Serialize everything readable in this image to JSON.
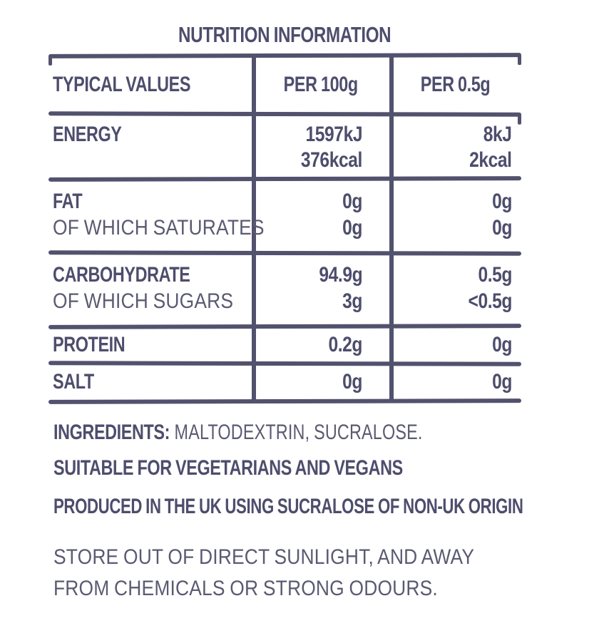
{
  "colors": {
    "ink_bold": "#4d4d6d",
    "ink_regular": "#5a5a72",
    "rule": "#52526e",
    "background": "#ffffff"
  },
  "title": "NUTRITION INFORMATION",
  "table": {
    "columns": [
      "TYPICAL VALUES",
      "PER 100g",
      "PER 0.5g"
    ],
    "rows": [
      {
        "label": "ENERGY",
        "sub_label": "",
        "per_100g": [
          "1597kJ",
          "376kcal"
        ],
        "per_0_5g": [
          "8kJ",
          "2kcal"
        ]
      },
      {
        "label": "FAT",
        "sub_label": "OF WHICH SATURATES",
        "per_100g": [
          "0g",
          "0g"
        ],
        "per_0_5g": [
          "0g",
          "0g"
        ]
      },
      {
        "label": "CARBOHYDRATE",
        "sub_label": "OF WHICH SUGARS",
        "per_100g": [
          "94.9g",
          "3g"
        ],
        "per_0_5g": [
          "0.5g",
          "<0.5g"
        ]
      },
      {
        "label": "PROTEIN",
        "sub_label": "",
        "per_100g": [
          "0.2g"
        ],
        "per_0_5g": [
          "0g"
        ]
      },
      {
        "label": "SALT",
        "sub_label": "",
        "per_100g": [
          "0g"
        ],
        "per_0_5g": [
          "0g"
        ]
      }
    ]
  },
  "footer": {
    "ingredients_label": "INGREDIENTS:",
    "ingredients_value": "MALTODEXTRIN, SUCRALOSE.",
    "suitable_line": "SUITABLE FOR VEGETARIANS AND VEGANS",
    "produced_line": "PRODUCED IN THE UK USING SUCRALOSE OF NON-UK ORIGIN",
    "storage_line_1": "STORE OUT OF DIRECT SUNLIGHT, AND AWAY",
    "storage_line_2": "FROM CHEMICALS OR STRONG ODOURS."
  }
}
